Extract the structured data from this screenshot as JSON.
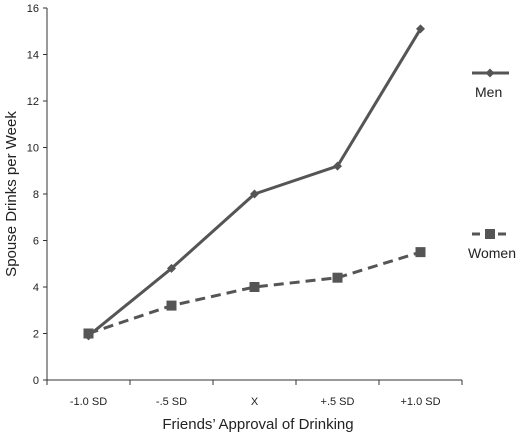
{
  "chart_data": {
    "type": "line",
    "categories": [
      "-1.0 SD",
      "-.5 SD",
      "X",
      "+.5 SD",
      "+1.0 SD"
    ],
    "series": [
      {
        "name": "Men",
        "values": [
          1.9,
          4.8,
          8.0,
          9.2,
          15.1
        ],
        "color": "#555555",
        "line_style": "solid",
        "marker": "diamond"
      },
      {
        "name": "Women",
        "values": [
          2.0,
          3.2,
          4.0,
          4.4,
          5.5
        ],
        "color": "#555555",
        "line_style": "dashed",
        "marker": "square"
      }
    ],
    "xlabel": "Friends’ Approval of Drinking",
    "ylabel": "Spouse Drinks per Week",
    "ylim": [
      0,
      16
    ],
    "yticks": [
      0,
      2,
      4,
      6,
      8,
      10,
      12,
      14,
      16
    ],
    "grid": false,
    "legend_position": "right"
  }
}
